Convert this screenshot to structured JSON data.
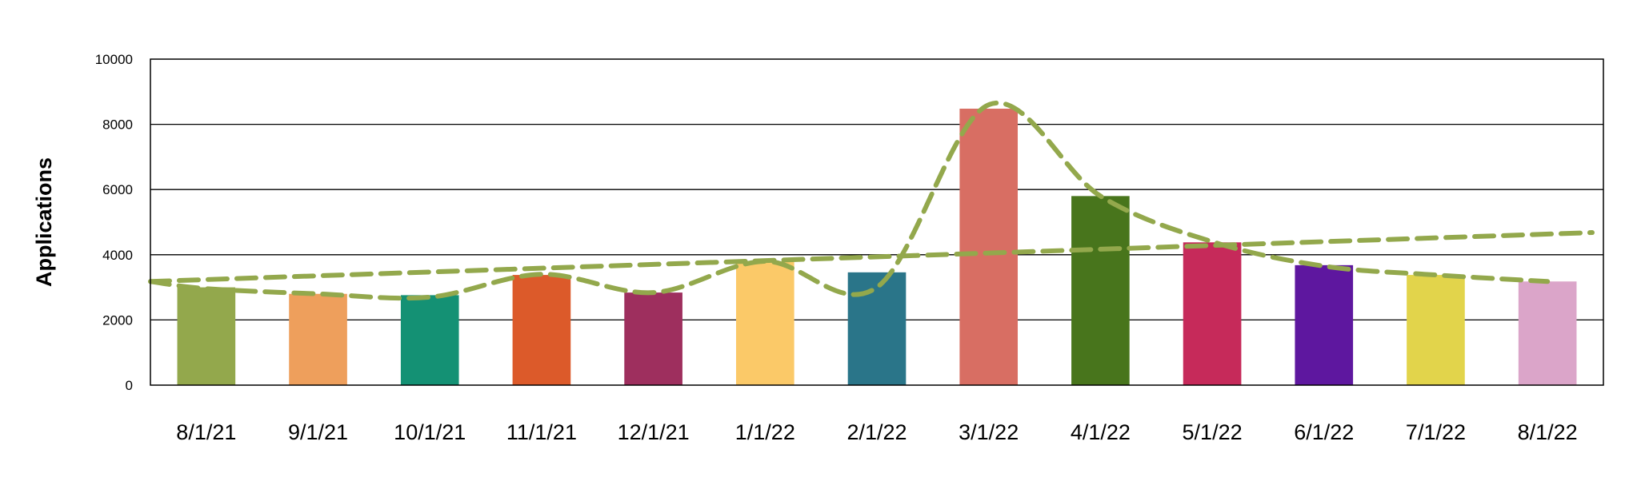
{
  "chart_data": {
    "type": "bar",
    "ylabel": "Applications",
    "ylim": [
      0,
      10000
    ],
    "yticks": [
      0,
      2000,
      4000,
      6000,
      8000,
      10000
    ],
    "grid": true,
    "categories": [
      "8/1/21",
      "9/1/21",
      "10/1/21",
      "11/1/21",
      "12/1/21",
      "1/1/22",
      "2/1/22",
      "3/1/22",
      "4/1/22",
      "5/1/22",
      "6/1/22",
      "7/1/22",
      "8/1/22"
    ],
    "values": [
      3000,
      2800,
      2760,
      3380,
      2840,
      3800,
      3460,
      8480,
      5800,
      4380,
      3680,
      3380,
      3180
    ],
    "bar_colors": [
      "#93a84c",
      "#ee9f5c",
      "#149174",
      "#dc5a2a",
      "#9e2f5e",
      "#fbc968",
      "#2a7589",
      "#d86e63",
      "#48751c",
      "#c62a5a",
      "#5e179f",
      "#e2d44b",
      "#dba5c9"
    ],
    "trendlines": {
      "color": "#93a84c",
      "style": "dashed",
      "linear": {
        "start": 3180,
        "end": 4680
      },
      "smoothed": [
        2960,
        2800,
        2700,
        3400,
        2840,
        3800,
        3000,
        8600,
        5800,
        4400,
        3650,
        3380,
        3180
      ]
    }
  }
}
